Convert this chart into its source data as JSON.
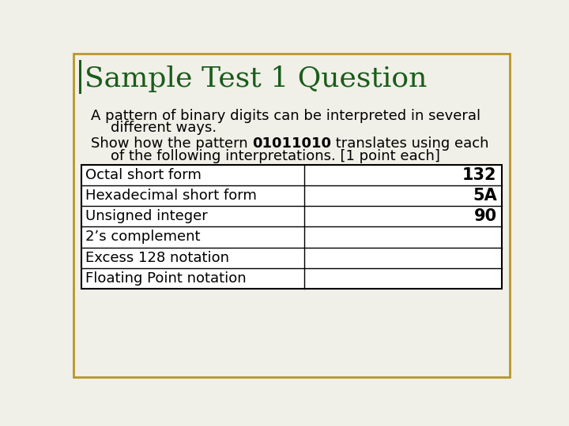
{
  "title": "Sample Test 1 Question",
  "title_color": "#1a5c1a",
  "title_fontsize": 26,
  "body_line1": "A pattern of binary digits can be interpreted in several",
  "body_line2": "different ways.",
  "body_line3_pre": "Show how the pattern ",
  "body_line3_bold": "01011010",
  "body_line3_post": " translates using each",
  "body_line4": "of the following interpretations. [1 point each]",
  "table_rows": [
    [
      "Octal short form",
      "132"
    ],
    [
      "Hexadecimal short form",
      "5A"
    ],
    [
      "Unsigned integer",
      "90"
    ],
    [
      "2’s complement",
      ""
    ],
    [
      "Excess 128 notation",
      ""
    ],
    [
      "Floating Point notation",
      ""
    ]
  ],
  "border_color": "#b8962a",
  "table_border_color": "#000000",
  "background_color": "#f0efe8",
  "white": "#ffffff",
  "text_color": "#000000",
  "body_fontsize": 13,
  "table_fontsize": 13,
  "title_bar_color": "#1a5c1a"
}
